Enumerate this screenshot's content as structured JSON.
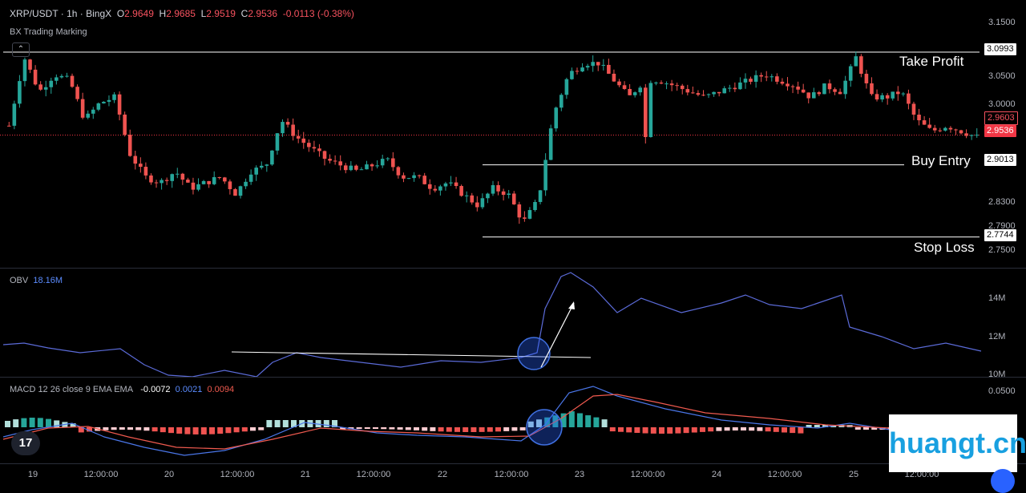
{
  "header": {
    "symbol": "XRP/USDT · 1h · BingX",
    "o_key": "O",
    "o_val": "2.9649",
    "h_key": "H",
    "h_val": "2.9685",
    "l_key": "L",
    "l_val": "2.9519",
    "c_key": "C",
    "c_val": "2.9536",
    "change": "-0.0113 (-0.38%)",
    "indicator": "BX Trading Marking"
  },
  "levels": {
    "take_profit": {
      "label": "Take Profit",
      "price": "3.0993"
    },
    "buy_entry": {
      "label": "Buy Entry",
      "price": "2.9013"
    },
    "stop_loss": {
      "label": "Stop Loss",
      "price": "2.7744"
    },
    "current_price": "2.9536",
    "prev_close": "2.9603"
  },
  "price_axis": [
    "3.1500",
    "3.0500",
    "3.0000",
    "2.8300",
    "2.7900",
    "2.7500"
  ],
  "obv": {
    "name": "OBV",
    "value": "18.16M",
    "axis": [
      "14M",
      "12M",
      "10M"
    ]
  },
  "macd": {
    "name": "MACD 12 26 close 9 EMA EMA",
    "hist_val": "-0.0072",
    "macd_val": "0.0021",
    "signal_val": "0.0094",
    "axis": [
      "0.0500"
    ]
  },
  "x_axis": [
    "19",
    "12:00:00",
    "20",
    "12:00:00",
    "21",
    "12:00:00",
    "22",
    "12:00:00",
    "23",
    "12:00:00",
    "24",
    "12:00:00",
    "25",
    "12:00:00"
  ],
  "watermark": "huangt.cn",
  "logo": "17",
  "colors": {
    "up": "#26a69a",
    "down": "#ef5350",
    "obv": "#5b6bd8",
    "macd": "#4a76e8",
    "signal": "#f05a4f",
    "highlight": "#2962ff"
  },
  "chart_data": {
    "type": "candlestick",
    "series": [
      {
        "name": "price",
        "close": [
          2.97,
          3.09,
          3.03,
          3.06,
          3.05,
          2.98,
          3.01,
          3.02,
          2.92,
          2.88,
          2.87,
          2.89,
          2.86,
          2.87,
          2.88,
          2.85,
          2.89,
          2.9,
          2.98,
          2.95,
          2.93,
          2.91,
          2.9,
          2.89,
          2.9,
          2.91,
          2.88,
          2.88,
          2.86,
          2.87,
          2.85,
          2.83,
          2.86,
          2.85,
          2.8,
          2.84,
          2.99,
          3.06,
          3.08,
          3.08,
          3.05,
          3.02,
          3.05,
          3.05,
          3.04,
          3.03,
          3.02,
          3.03,
          3.04,
          3.05,
          3.06,
          3.05,
          3.04,
          3.02,
          3.04,
          3.03,
          3.09,
          3.02,
          3.02,
          3.03,
          2.98,
          2.96,
          2.97,
          2.96,
          2.95
        ]
      }
    ]
  }
}
